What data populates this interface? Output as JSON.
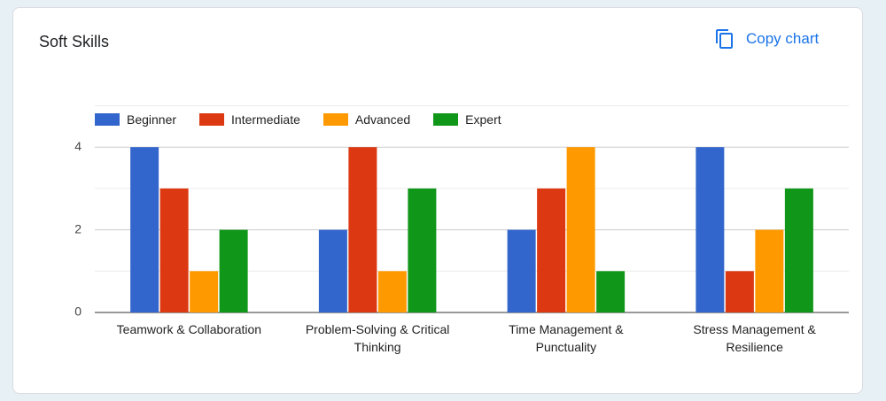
{
  "ui": {
    "copy_button": "Copy chart"
  },
  "chart_data": {
    "type": "bar",
    "title": "Soft Skills",
    "categories": [
      "Teamwork & Collaboration",
      "Problem-Solving & Critical Thinking",
      "Time Management & Punctuality",
      "Stress Management & Resilience"
    ],
    "series": [
      {
        "name": "Beginner",
        "color": "#3366cc",
        "values": [
          4,
          2,
          2,
          4
        ]
      },
      {
        "name": "Intermediate",
        "color": "#dc3912",
        "values": [
          3,
          4,
          3,
          1
        ]
      },
      {
        "name": "Advanced",
        "color": "#ff9900",
        "values": [
          1,
          1,
          4,
          2
        ]
      },
      {
        "name": "Expert",
        "color": "#109618",
        "values": [
          2,
          3,
          1,
          3
        ]
      }
    ],
    "ylim": [
      0,
      5
    ],
    "yticks": [
      0,
      2,
      4
    ],
    "minor_yticks": [
      1,
      3,
      5
    ],
    "grid": true,
    "legend": "top"
  }
}
